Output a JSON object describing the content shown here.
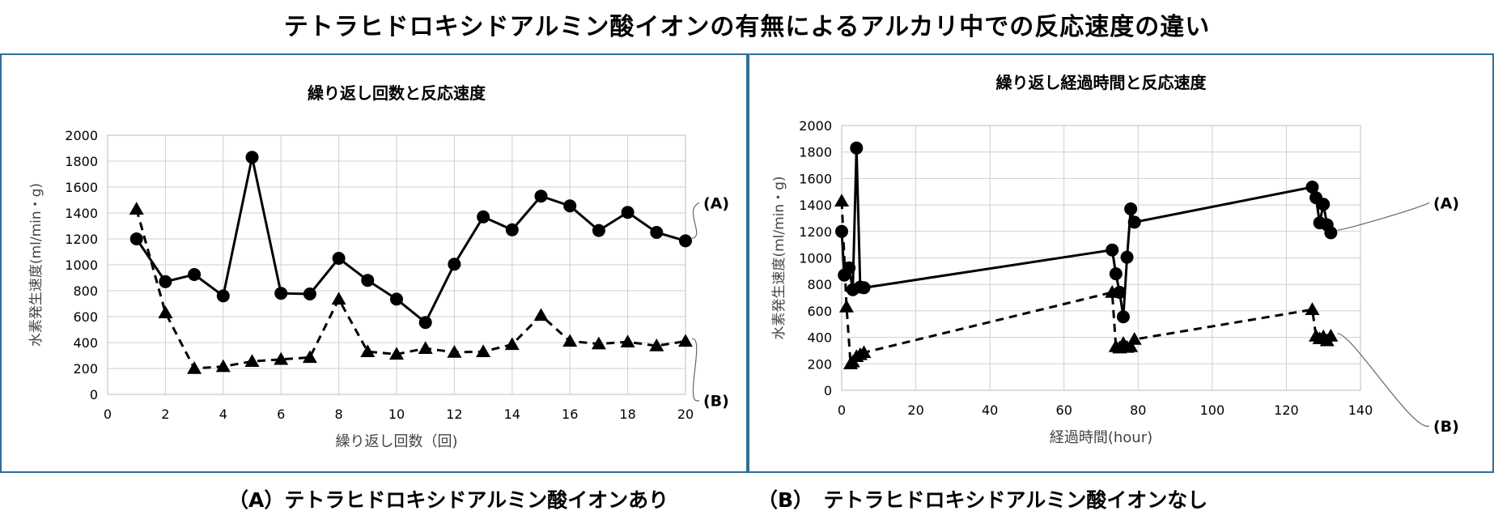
{
  "title": "テトラヒドロキシドアルミン酸イオンの有無によるアルカリ中での反応速度の違い",
  "captions": {
    "a": "（A）テトラヒドロキシドアルミン酸イオンあり",
    "b": "（B）　テトラヒドロキシドアルミン酸イオンなし"
  },
  "chart_data": [
    {
      "type": "line",
      "title": "繰り返し回数と反応速度",
      "xlabel": "繰り返し回数（回)",
      "ylabel": "水素発生速度(ml/min・g)",
      "xlim": [
        0,
        20
      ],
      "ylim": [
        0,
        2000
      ],
      "xticks": [
        0,
        2,
        4,
        6,
        8,
        10,
        12,
        14,
        16,
        18,
        20
      ],
      "yticks": [
        0,
        200,
        400,
        600,
        800,
        1000,
        1200,
        1400,
        1600,
        1800,
        2000
      ],
      "grid": true,
      "series": [
        {
          "name": "(A)",
          "style": "solid",
          "marker": "circle",
          "x": [
            1,
            2,
            3,
            4,
            5,
            6,
            7,
            8,
            9,
            10,
            11,
            12,
            13,
            14,
            15,
            16,
            17,
            18,
            19,
            20
          ],
          "y": [
            1200,
            870,
            925,
            760,
            1830,
            780,
            775,
            1050,
            880,
            735,
            555,
            1005,
            1370,
            1270,
            1530,
            1455,
            1265,
            1405,
            1250,
            1185
          ]
        },
        {
          "name": "(B)",
          "style": "dashed",
          "marker": "triangle",
          "x": [
            1,
            2,
            3,
            4,
            5,
            6,
            7,
            8,
            9,
            10,
            11,
            12,
            13,
            14,
            15,
            16,
            17,
            18,
            19,
            20
          ],
          "y": [
            1430,
            630,
            200,
            215,
            255,
            270,
            285,
            735,
            330,
            310,
            355,
            325,
            330,
            385,
            610,
            410,
            390,
            405,
            375,
            410
          ]
        }
      ]
    },
    {
      "type": "line",
      "title": "繰り返し経過時間と反応速度",
      "xlabel": "経過時間(hour)",
      "ylabel": "水素発生速度(ml/min・g)",
      "xlim": [
        0,
        140
      ],
      "ylim": [
        0,
        2000
      ],
      "xticks": [
        0,
        20,
        40,
        60,
        80,
        100,
        120,
        140
      ],
      "yticks": [
        0,
        200,
        400,
        600,
        800,
        1000,
        1200,
        1400,
        1600,
        1800,
        2000
      ],
      "grid": true,
      "series": [
        {
          "name": "(A)",
          "style": "solid",
          "marker": "circle",
          "x": [
            0,
            0.7,
            2,
            3,
            4,
            5,
            6,
            73,
            74,
            75,
            76,
            77,
            78,
            79,
            127,
            128,
            129,
            130,
            131,
            132
          ],
          "y": [
            1200,
            870,
            925,
            760,
            1830,
            780,
            775,
            1060,
            880,
            740,
            555,
            1005,
            1370,
            1270,
            1535,
            1455,
            1265,
            1405,
            1250,
            1190
          ]
        },
        {
          "name": "(B)",
          "style": "dashed",
          "marker": "triangle",
          "x": [
            0,
            1.3,
            2.4,
            3,
            4,
            5,
            6,
            73,
            74,
            75,
            76,
            77,
            78,
            79,
            127,
            128,
            129,
            130,
            131,
            132
          ],
          "y": [
            1430,
            630,
            200,
            215,
            255,
            270,
            285,
            740,
            330,
            320,
            355,
            325,
            330,
            385,
            610,
            410,
            390,
            405,
            375,
            410
          ]
        }
      ]
    }
  ]
}
